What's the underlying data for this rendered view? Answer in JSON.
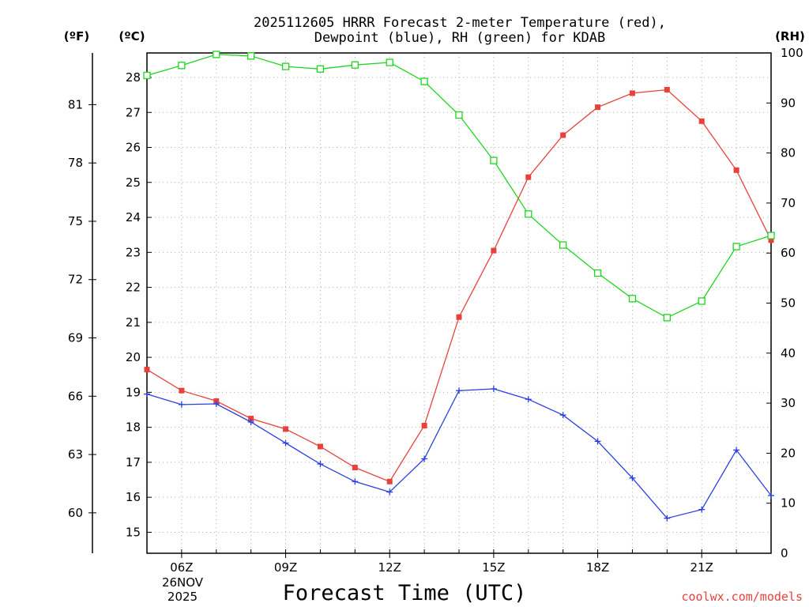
{
  "chart_data": {
    "type": "line",
    "title_line1": "2025112605 HRRR Forecast 2-meter Temperature (red),",
    "title_line2": "Dewpoint (blue), RH (green) for KDAB",
    "xlabel": "Forecast Time (UTC)",
    "credit": "coolwx.com/models",
    "unit_f": "(ºF)",
    "unit_c": "(ºC)",
    "unit_rh": "(RH)",
    "date_label_1": "26NOV",
    "date_label_2": "2025",
    "x_hours": [
      5,
      6,
      7,
      8,
      9,
      10,
      11,
      12,
      13,
      14,
      15,
      16,
      17,
      18,
      19,
      20,
      21,
      22,
      23
    ],
    "xlim": [
      5,
      23
    ],
    "x_ticks": [
      {
        "hour": 6,
        "label": "06Z"
      },
      {
        "hour": 9,
        "label": "09Z"
      },
      {
        "hour": 12,
        "label": "12Z"
      },
      {
        "hour": 15,
        "label": "15Z"
      },
      {
        "hour": 18,
        "label": "18Z"
      },
      {
        "hour": 21,
        "label": "21Z"
      }
    ],
    "ylim_c": [
      14.4,
      28.7
    ],
    "yticks_c": [
      "15",
      "16",
      "17",
      "18",
      "19",
      "20",
      "21",
      "22",
      "23",
      "24",
      "25",
      "26",
      "27",
      "28"
    ],
    "yticks_f": [
      "60",
      "63",
      "66",
      "69",
      "72",
      "75",
      "78",
      "81"
    ],
    "ylim_rh": [
      0,
      100
    ],
    "yticks_rh": [
      "0",
      "10",
      "20",
      "30",
      "40",
      "50",
      "60",
      "70",
      "80",
      "90",
      "100"
    ],
    "series": [
      {
        "name": "Temperature (°C)",
        "color": "#e8413c",
        "marker": "filled-square",
        "axis": "c",
        "values": [
          19.65,
          19.05,
          18.75,
          18.25,
          17.95,
          17.45,
          16.85,
          16.45,
          18.05,
          21.15,
          23.05,
          25.15,
          26.35,
          27.15,
          27.55,
          27.65,
          26.75,
          25.35,
          23.35
        ]
      },
      {
        "name": "Dewpoint (°C)",
        "color": "#2b3fe0",
        "marker": "plus",
        "axis": "c",
        "values": [
          18.95,
          18.65,
          18.67,
          18.15,
          17.55,
          16.95,
          16.45,
          16.15,
          17.1,
          19.05,
          19.1,
          18.8,
          18.35,
          17.6,
          16.55,
          15.4,
          15.65,
          17.35,
          16.05
        ]
      },
      {
        "name": "RH (%)",
        "color": "#1ed61e",
        "marker": "open-square",
        "axis": "rh",
        "values": [
          95.5,
          97.5,
          99.7,
          99.4,
          97.3,
          96.8,
          97.6,
          98.1,
          94.3,
          87.6,
          78.5,
          67.8,
          61.6,
          56.0,
          50.9,
          47.1,
          50.4,
          61.3,
          63.5
        ]
      }
    ]
  }
}
